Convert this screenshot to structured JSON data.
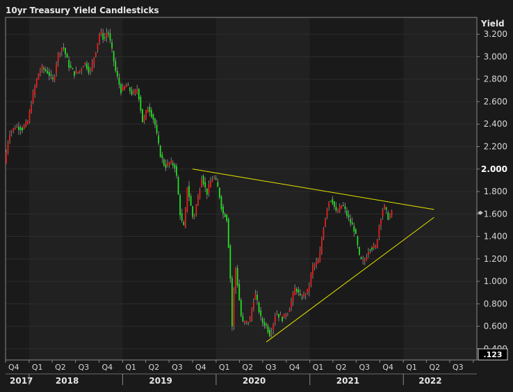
{
  "chart_data": {
    "type": "candlestick",
    "title": "10yr Treasury Yield Candlesticks",
    "ylabel": "Yield",
    "ylim": [
      0.3,
      3.35
    ],
    "y_ticks": [
      {
        "value": 3.2,
        "label": "3.200"
      },
      {
        "value": 3.0,
        "label": "3.000"
      },
      {
        "value": 2.8,
        "label": "2.800"
      },
      {
        "value": 2.6,
        "label": "2.600"
      },
      {
        "value": 2.4,
        "label": "2.400"
      },
      {
        "value": 2.2,
        "label": "2.200"
      },
      {
        "value": 2.0,
        "label": "2.000"
      },
      {
        "value": 1.8,
        "label": "1.800"
      },
      {
        "value": 1.6,
        "label": "1.600"
      },
      {
        "value": 1.4,
        "label": "1.400"
      },
      {
        "value": 1.2,
        "label": "1.200"
      },
      {
        "value": 1.0,
        "label": "1.000"
      },
      {
        "value": 0.8,
        "label": "0.800"
      },
      {
        "value": 0.6,
        "label": "0.600"
      },
      {
        "value": 0.4,
        "label": "0.400"
      }
    ],
    "highlight_tick": "2.000",
    "corner_label": ".123",
    "x_quarter_labels": [
      "Q4",
      "Q1",
      "Q2",
      "Q3",
      "Q4",
      "Q1",
      "Q2",
      "Q3",
      "Q4",
      "Q1",
      "Q2",
      "Q3",
      "Q4",
      "Q1",
      "Q2",
      "Q3",
      "Q4",
      "Q1",
      "Q2",
      "Q3"
    ],
    "x_year_labels": [
      "2017",
      "2018",
      "2019",
      "2020",
      "2021",
      "2022"
    ],
    "xlim": [
      "2017-10-01",
      "2022-10-15"
    ],
    "trendlines": [
      {
        "start": {
          "date": "2019-10-01",
          "y": 2.0
        },
        "end": {
          "date": "2022-05-01",
          "y": 1.64
        }
      },
      {
        "start": {
          "date": "2020-07-15",
          "y": 0.46
        },
        "end": {
          "date": "2022-05-01",
          "y": 1.57
        }
      }
    ],
    "last_value_marker": 1.61,
    "colors": {
      "up": "#e8201c",
      "down": "#22e022",
      "trendline": "#e6e600",
      "background": "#1a1a1a",
      "band": "#212121",
      "grid": "#3a3a3a",
      "text": "#d8d8d8"
    },
    "series_path": [
      [
        "2017-10-01",
        2.05
      ],
      [
        "2017-10-20",
        2.32
      ],
      [
        "2017-11-15",
        2.38
      ],
      [
        "2017-12-10",
        2.36
      ],
      [
        "2017-12-31",
        2.42
      ],
      [
        "2018-01-20",
        2.66
      ],
      [
        "2018-02-10",
        2.85
      ],
      [
        "2018-02-25",
        2.9
      ],
      [
        "2018-03-20",
        2.86
      ],
      [
        "2018-04-10",
        2.78
      ],
      [
        "2018-04-25",
        3.0
      ],
      [
        "2018-05-17",
        3.1
      ],
      [
        "2018-06-10",
        2.92
      ],
      [
        "2018-06-30",
        2.85
      ],
      [
        "2018-07-20",
        2.87
      ],
      [
        "2018-08-10",
        2.95
      ],
      [
        "2018-08-31",
        2.86
      ],
      [
        "2018-09-25",
        3.08
      ],
      [
        "2018-10-10",
        3.23
      ],
      [
        "2018-10-25",
        3.15
      ],
      [
        "2018-11-08",
        3.24
      ],
      [
        "2018-11-25",
        3.05
      ],
      [
        "2018-12-10",
        2.86
      ],
      [
        "2018-12-31",
        2.69
      ],
      [
        "2019-01-20",
        2.75
      ],
      [
        "2019-02-15",
        2.66
      ],
      [
        "2019-03-05",
        2.72
      ],
      [
        "2019-03-25",
        2.41
      ],
      [
        "2019-04-15",
        2.56
      ],
      [
        "2019-05-10",
        2.42
      ],
      [
        "2019-05-31",
        2.14
      ],
      [
        "2019-06-20",
        2.02
      ],
      [
        "2019-07-10",
        2.06
      ],
      [
        "2019-07-31",
        2.02
      ],
      [
        "2019-08-20",
        1.56
      ],
      [
        "2019-09-03",
        1.47
      ],
      [
        "2019-09-15",
        1.85
      ],
      [
        "2019-10-08",
        1.55
      ],
      [
        "2019-10-30",
        1.78
      ],
      [
        "2019-11-10",
        1.94
      ],
      [
        "2019-11-30",
        1.78
      ],
      [
        "2019-12-20",
        1.92
      ],
      [
        "2019-12-31",
        1.92
      ],
      [
        "2020-01-15",
        1.81
      ],
      [
        "2020-01-31",
        1.6
      ],
      [
        "2020-02-15",
        1.59
      ],
      [
        "2020-02-28",
        1.15
      ],
      [
        "2020-03-09",
        0.54
      ],
      [
        "2020-03-19",
        1.18
      ],
      [
        "2020-04-15",
        0.63
      ],
      [
        "2020-05-15",
        0.64
      ],
      [
        "2020-06-05",
        0.9
      ],
      [
        "2020-06-30",
        0.65
      ],
      [
        "2020-07-20",
        0.6
      ],
      [
        "2020-08-04",
        0.52
      ],
      [
        "2020-08-25",
        0.72
      ],
      [
        "2020-09-20",
        0.67
      ],
      [
        "2020-10-15",
        0.74
      ],
      [
        "2020-11-10",
        0.95
      ],
      [
        "2020-11-30",
        0.85
      ],
      [
        "2020-12-31",
        0.92
      ],
      [
        "2021-01-15",
        1.13
      ],
      [
        "2021-02-10",
        1.18
      ],
      [
        "2021-02-25",
        1.45
      ],
      [
        "2021-03-18",
        1.71
      ],
      [
        "2021-03-31",
        1.74
      ],
      [
        "2021-04-20",
        1.6
      ],
      [
        "2021-05-12",
        1.69
      ],
      [
        "2021-06-05",
        1.56
      ],
      [
        "2021-06-30",
        1.45
      ],
      [
        "2021-07-20",
        1.19
      ],
      [
        "2021-08-05",
        1.17
      ],
      [
        "2021-08-25",
        1.3
      ],
      [
        "2021-09-20",
        1.3
      ],
      [
        "2021-10-05",
        1.53
      ],
      [
        "2021-10-21",
        1.68
      ],
      [
        "2021-11-10",
        1.55
      ],
      [
        "2021-11-20",
        1.61
      ]
    ]
  }
}
